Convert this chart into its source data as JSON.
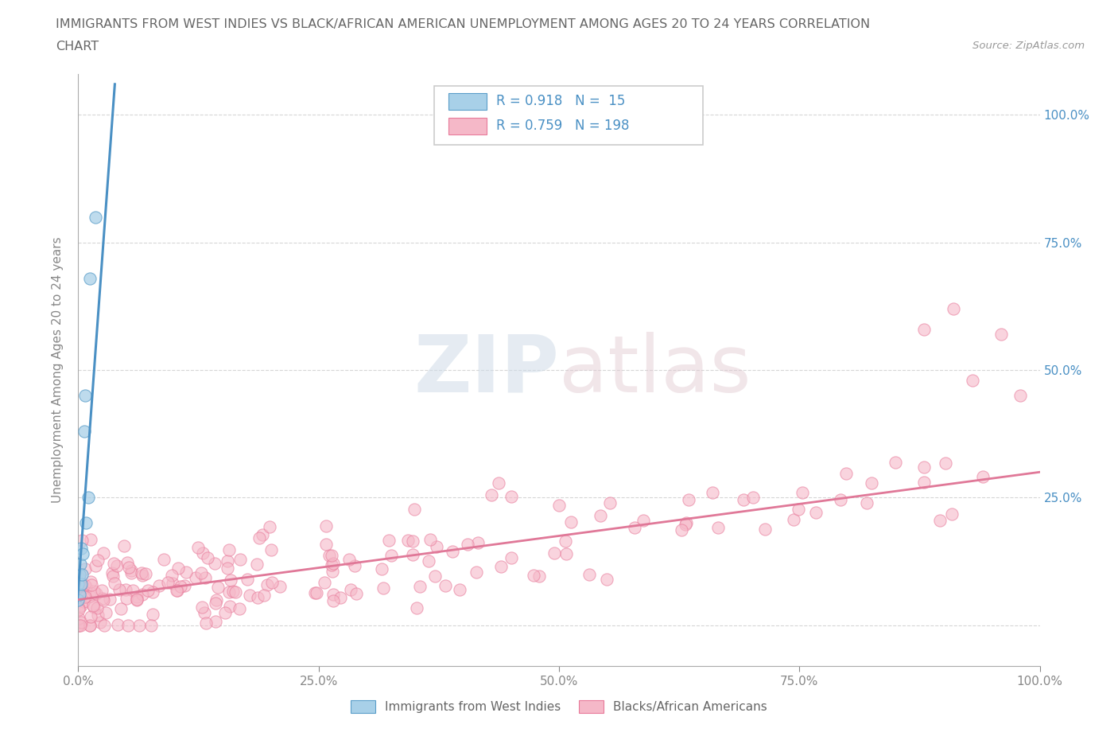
{
  "title_line1": "IMMIGRANTS FROM WEST INDIES VS BLACK/AFRICAN AMERICAN UNEMPLOYMENT AMONG AGES 20 TO 24 YEARS CORRELATION",
  "title_line2": "CHART",
  "source_text": "Source: ZipAtlas.com",
  "ylabel": "Unemployment Among Ages 20 to 24 years",
  "legend_label1": "Immigrants from West Indies",
  "legend_label2": "Blacks/African Americans",
  "R1": 0.918,
  "N1": 15,
  "R2": 0.759,
  "N2": 198,
  "color_blue_fill": "#a8d0e8",
  "color_blue_edge": "#5b9ec9",
  "color_blue_line": "#4a90c4",
  "color_pink_fill": "#f5b8c8",
  "color_pink_edge": "#e87a9a",
  "color_pink_line": "#e07898",
  "color_text_blue": "#4a90c4",
  "color_axis": "#aaaaaa",
  "color_grid": "#cccccc",
  "color_label": "#888888",
  "watermark_color": "#e8eef4",
  "xmin": 0.0,
  "xmax": 1.0,
  "ymin": -0.08,
  "ymax": 1.08,
  "blue_trend_x0": -0.005,
  "blue_trend_y0": -0.06,
  "blue_trend_x1": 0.038,
  "blue_trend_y1": 1.06,
  "pink_trend_x0": 0.0,
  "pink_trend_y0": 0.05,
  "pink_trend_x1": 1.0,
  "pink_trend_y1": 0.3
}
